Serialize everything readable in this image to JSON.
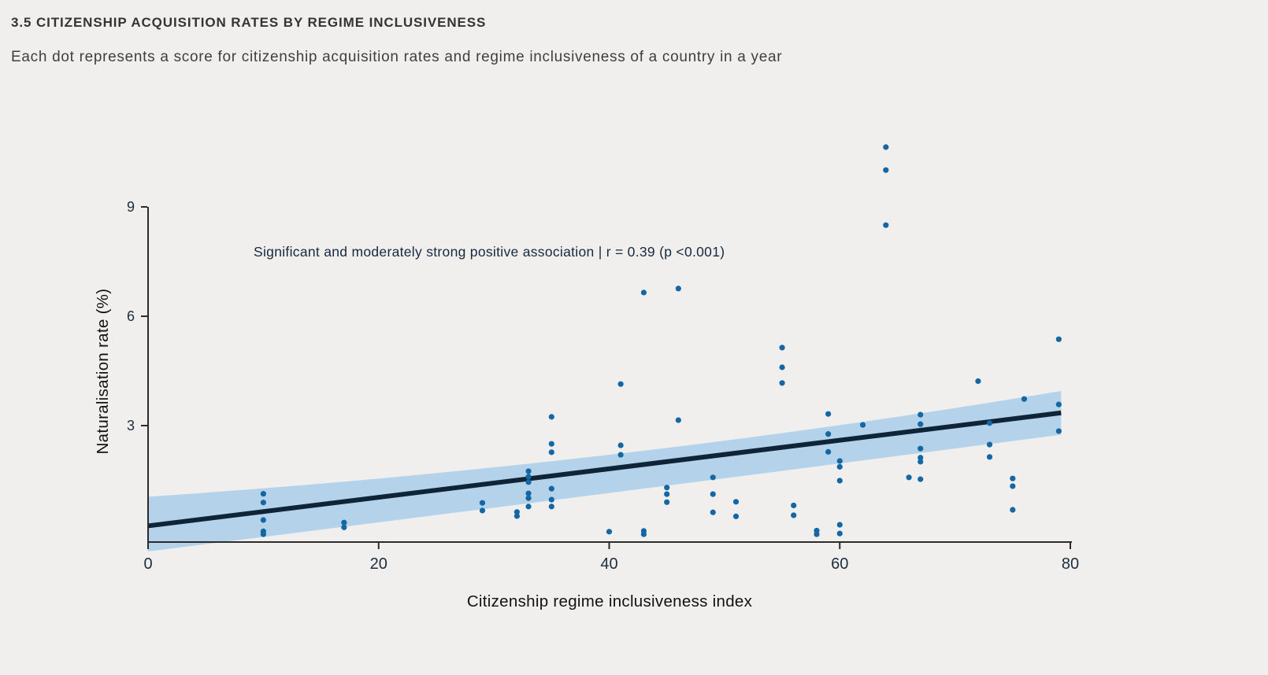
{
  "header": {
    "title": "3.5 CITIZENSHIP ACQUISITION RATES BY REGIME INCLUSIVENESS",
    "subtitle": "Each dot represents a score for citizenship acquisition rates and regime inclusiveness of a country in a year"
  },
  "chart_data": {
    "type": "scatter",
    "title": "3.5 CITIZENSHIP ACQUISITION RATES BY REGIME INCLUSIVENESS",
    "subtitle": "Each dot represents a score for citizenship acquisition rates and regime inclusiveness of a country in a year",
    "annotation": "Significant and moderately strong positive association | r = 0.39 (p <0.001)",
    "xlabel": "Citizenship regime inclusiveness index",
    "ylabel": "Naturalisation rate (%)",
    "xlim": [
      0,
      80
    ],
    "ylim": [
      0,
      11
    ],
    "xticks": [
      0,
      20,
      40,
      60,
      80
    ],
    "yticks": [
      3,
      6,
      9
    ],
    "grid": false,
    "legend": "none",
    "points": [
      [
        10,
        1.13
      ],
      [
        10,
        0.89
      ],
      [
        10,
        0.41
      ],
      [
        10,
        0.1
      ],
      [
        10,
        0.02
      ],
      [
        17,
        0.34
      ],
      [
        17,
        0.21
      ],
      [
        29,
        0.88
      ],
      [
        29,
        0.67
      ],
      [
        32,
        0.63
      ],
      [
        32,
        0.52
      ],
      [
        33,
        1.75
      ],
      [
        33,
        1.6
      ],
      [
        33,
        1.45
      ],
      [
        33,
        1.14
      ],
      [
        33,
        1.01
      ],
      [
        33,
        0.78
      ],
      [
        35,
        3.24
      ],
      [
        35,
        2.5
      ],
      [
        35,
        2.27
      ],
      [
        35,
        1.27
      ],
      [
        35,
        0.97
      ],
      [
        35,
        0.78
      ],
      [
        40,
        0.09
      ],
      [
        41,
        4.14
      ],
      [
        41,
        2.46
      ],
      [
        41,
        2.2
      ],
      [
        43,
        6.65
      ],
      [
        43,
        0.11
      ],
      [
        43,
        0.02
      ],
      [
        45,
        1.3
      ],
      [
        45,
        1.12
      ],
      [
        45,
        0.9
      ],
      [
        46,
        6.76
      ],
      [
        46,
        3.15
      ],
      [
        49,
        1.58
      ],
      [
        49,
        1.12
      ],
      [
        49,
        0.62
      ],
      [
        51,
        0.91
      ],
      [
        51,
        0.51
      ],
      [
        55,
        5.14
      ],
      [
        55,
        4.6
      ],
      [
        55,
        4.17
      ],
      [
        56,
        0.81
      ],
      [
        56,
        0.54
      ],
      [
        58,
        0.12
      ],
      [
        58,
        0.02
      ],
      [
        59,
        3.32
      ],
      [
        59,
        2.77
      ],
      [
        59,
        2.28
      ],
      [
        60,
        2.03
      ],
      [
        60,
        1.87
      ],
      [
        60,
        1.49
      ],
      [
        60,
        0.28
      ],
      [
        60,
        0.04
      ],
      [
        62,
        3.02
      ],
      [
        64,
        10.64
      ],
      [
        64,
        10.01
      ],
      [
        64,
        8.5
      ],
      [
        66,
        1.58
      ],
      [
        67,
        3.3
      ],
      [
        67,
        3.04
      ],
      [
        67,
        2.37
      ],
      [
        67,
        2.12
      ],
      [
        67,
        2.01
      ],
      [
        67,
        1.53
      ],
      [
        72,
        4.22
      ],
      [
        73,
        3.07
      ],
      [
        73,
        2.48
      ],
      [
        73,
        2.14
      ],
      [
        75,
        1.55
      ],
      [
        75,
        1.34
      ],
      [
        75,
        0.69
      ],
      [
        76,
        3.73
      ],
      [
        79,
        5.37
      ],
      [
        79,
        3.58
      ],
      [
        79,
        2.85
      ]
    ],
    "trend": {
      "x_start": 0,
      "y_start": 0.25,
      "x_end": 79.2,
      "y_end": 3.35,
      "r": 0.39,
      "p": "<0.001"
    },
    "ci_band": {
      "x_start": 0,
      "top_start": 1.05,
      "bottom_start": -0.45,
      "x_mid": 40,
      "top_mid": 2.2,
      "bottom_mid": 1.15,
      "x_end": 79.2,
      "top_end": 3.95,
      "bottom_end": 2.75
    },
    "colors": {
      "background": "#f0efed",
      "dot": "#1467a4",
      "trend_line": "#0f2437",
      "ci_band": "#b4d3ea",
      "axis": "#2b2b2b",
      "tick_label": "#1e2d3d",
      "annotation_text": "#16293f",
      "title_text": "#343434",
      "subtitle_text": "#3f3f3f"
    }
  }
}
